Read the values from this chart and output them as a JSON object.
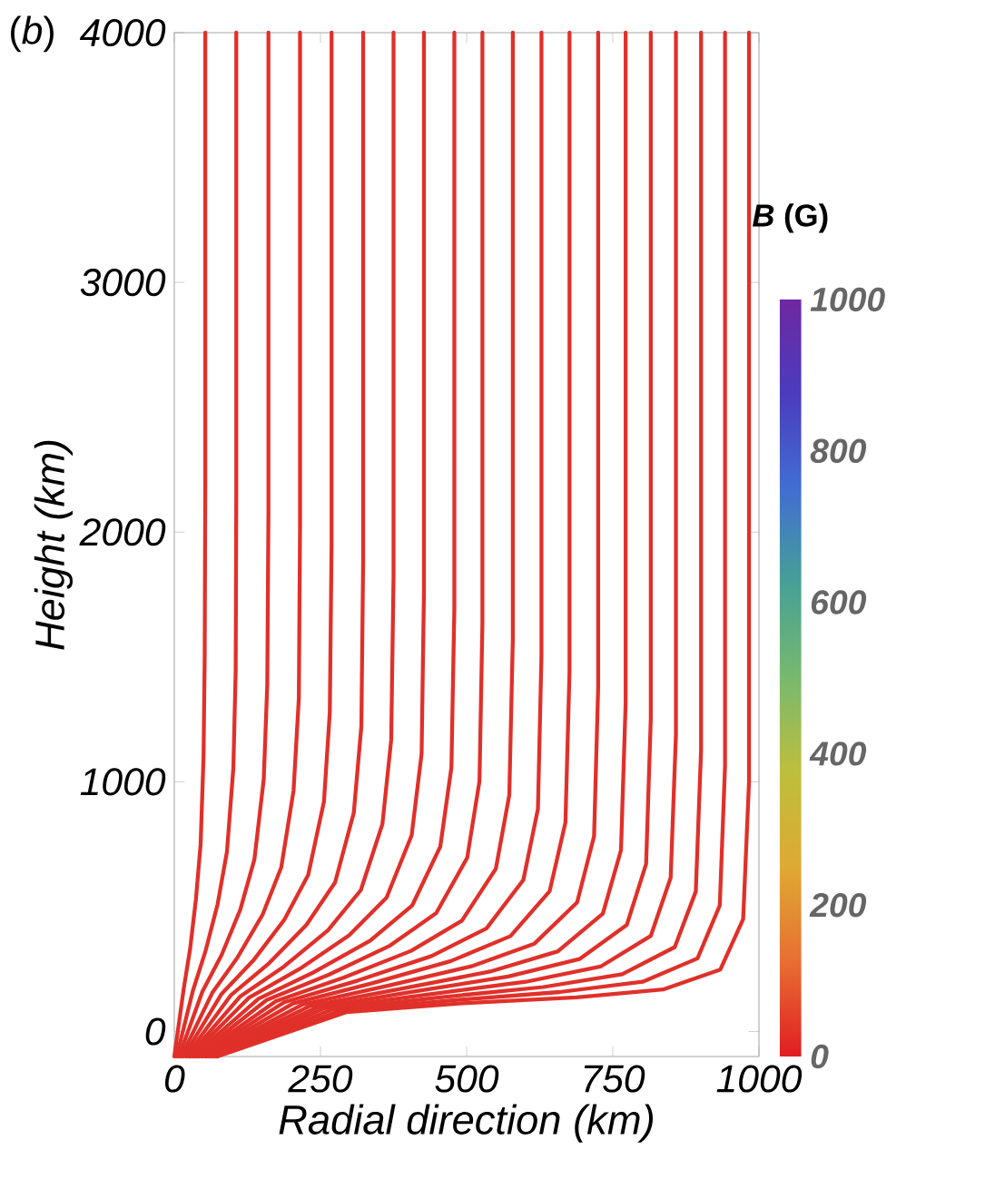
{
  "chart_data": {
    "type": "line",
    "xlabel": "Radial direction (km)",
    "ylabel": "Height (km)",
    "clabel": "*B* (G)",
    "annotations": [
      "(*b*)"
    ],
    "xlim": [
      0,
      1000
    ],
    "ylim": [
      -100,
      4000
    ],
    "xticks": [
      0,
      250,
      500,
      750,
      1000
    ],
    "yticks": [
      0,
      1000,
      2000,
      3000,
      4000
    ],
    "clim": [
      0,
      1000
    ],
    "cticks": [
      0,
      200,
      400,
      600,
      800,
      1000
    ],
    "series": [
      {
        "color": "#e0302a",
        "x": [
          0,
          16,
          27,
          37,
          45,
          50,
          52,
          53,
          53
        ],
        "values": [
          -100,
          170,
          330,
          530,
          750,
          1100,
          1500,
          2200,
          4000
        ]
      },
      {
        "color": "#e0302a",
        "x": [
          4,
          32,
          53,
          74,
          90,
          101,
          105,
          106,
          106
        ],
        "values": [
          -100,
          165,
          319,
          509,
          719,
          1055,
          1445,
          2137,
          4000
        ]
      },
      {
        "color": "#e0302a",
        "x": [
          8,
          48,
          81,
          113,
          137,
          153,
          159,
          161,
          161
        ],
        "values": [
          -100,
          160,
          307,
          489,
          689,
          1010,
          1389,
          2074,
          4000
        ]
      },
      {
        "color": "#e0302a",
        "x": [
          12,
          65,
          108,
          151,
          183,
          204,
          213,
          215,
          215
        ],
        "values": [
          -100,
          155,
          296,
          468,
          658,
          965,
          1334,
          2011,
          4000
        ]
      },
      {
        "color": "#e0302a",
        "x": [
          16,
          81,
          135,
          188,
          229,
          256,
          266,
          269,
          269
        ],
        "values": [
          -100,
          151,
          284,
          447,
          627,
          921,
          1279,
          1947,
          4000
        ]
      },
      {
        "color": "#e0302a",
        "x": [
          20,
          97,
          162,
          226,
          275,
          307,
          320,
          323,
          323
        ],
        "values": [
          -100,
          146,
          273,
          427,
          597,
          876,
          1224,
          1884,
          4000
        ]
      },
      {
        "color": "#e0302a",
        "x": [
          24,
          113,
          188,
          263,
          319,
          356,
          371,
          375,
          375
        ],
        "values": [
          -100,
          141,
          261,
          406,
          566,
          831,
          1168,
          1821,
          4000
        ]
      },
      {
        "color": "#e0302a",
        "x": [
          27,
          128,
          214,
          299,
          363,
          406,
          423,
          427,
          427
        ],
        "values": [
          -100,
          136,
          250,
          385,
          536,
          786,
          1113,
          1758,
          4000
        ]
      },
      {
        "color": "#e0302a",
        "x": [
          31,
          144,
          240,
          335,
          407,
          455,
          474,
          479,
          479
        ],
        "values": [
          -100,
          131,
          239,
          364,
          505,
          741,
          1058,
          1695,
          4000
        ]
      },
      {
        "color": "#e0302a",
        "x": [
          35,
          158,
          264,
          369,
          448,
          501,
          522,
          527,
          527
        ],
        "values": [
          -100,
          126,
          227,
          344,
          474,
          696,
          1003,
          1632,
          4000
        ]
      },
      {
        "color": "#e0302a",
        "x": [
          39,
          174,
          290,
          405,
          492,
          550,
          573,
          579,
          579
        ],
        "values": [
          -100,
          122,
          216,
          323,
          444,
          652,
          947,
          1568,
          4000
        ]
      },
      {
        "color": "#e0302a",
        "x": [
          43,
          188,
          314,
          440,
          534,
          597,
          622,
          628,
          628
        ],
        "values": [
          -100,
          117,
          204,
          302,
          413,
          607,
          892,
          1505,
          4000
        ]
      },
      {
        "color": "#e0302a",
        "x": [
          47,
          203,
          338,
          473,
          575,
          642,
          669,
          676,
          676
        ],
        "values": [
          -100,
          112,
          193,
          282,
          382,
          562,
          837,
          1442,
          4000
        ]
      },
      {
        "color": "#e0302a",
        "x": [
          51,
          218,
          363,
          508,
          616,
          689,
          718,
          725,
          725
        ],
        "values": [
          -100,
          107,
          182,
          261,
          352,
          517,
          782,
          1379,
          4000
        ]
      },
      {
        "color": "#e0302a",
        "x": [
          55,
          232,
          386,
          540,
          656,
          733,
          764,
          772,
          772
        ],
        "values": [
          -100,
          102,
          170,
          240,
          321,
          472,
          726,
          1316,
          4000
        ]
      },
      {
        "color": "#e0302a",
        "x": [
          59,
          245,
          408,
          571,
          693,
          774,
          807,
          815,
          815
        ],
        "values": [
          -100,
          97,
          159,
          220,
          290,
          427,
          671,
          1253,
          4000
        ]
      },
      {
        "color": "#e0302a",
        "x": [
          63,
          257,
          429,
          601,
          729,
          815,
          849,
          858,
          858
        ],
        "values": [
          -100,
          93,
          147,
          199,
          260,
          383,
          616,
          1189,
          4000
        ]
      },
      {
        "color": "#e0302a",
        "x": [
          67,
          270,
          451,
          631,
          766,
          856,
          892,
          901,
          901
        ],
        "values": [
          -100,
          88,
          136,
          178,
          229,
          338,
          561,
          1126,
          4000
        ]
      },
      {
        "color": "#e0302a",
        "x": [
          71,
          283,
          471,
          659,
          801,
          895,
          933,
          942,
          942
        ],
        "values": [
          -100,
          83,
          124,
          158,
          199,
          293,
          505,
          1063,
          4000
        ]
      },
      {
        "color": "#e0302a",
        "x": [
          74,
          295,
          492,
          688,
          836,
          934,
          973,
          983,
          983
        ],
        "values": [
          -100,
          78,
          113,
          137,
          168,
          248,
          450,
          1000,
          4000
        ]
      }
    ]
  }
}
